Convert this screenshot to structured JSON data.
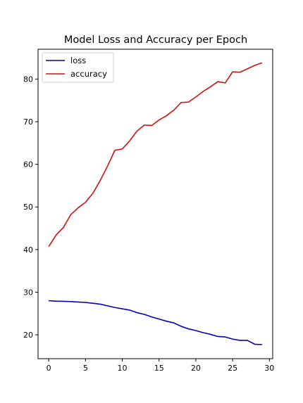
{
  "chart_data": {
    "type": "line",
    "title": "Model Loss and Accuracy per Epoch",
    "xlabel": "",
    "ylabel": "",
    "xlim": [
      -1.45,
      30.45
    ],
    "ylim": [
      14.4,
      87.0
    ],
    "xticks": [
      0,
      5,
      10,
      15,
      20,
      25,
      30
    ],
    "yticks": [
      20,
      30,
      40,
      50,
      60,
      70,
      80
    ],
    "grid": false,
    "legend_position": "top-left",
    "x": [
      0,
      1,
      2,
      3,
      4,
      5,
      6,
      7,
      8,
      9,
      10,
      11,
      12,
      13,
      14,
      15,
      16,
      17,
      18,
      19,
      20,
      21,
      22,
      23,
      24,
      25,
      26,
      27,
      28,
      29
    ],
    "series": [
      {
        "name": "loss",
        "color": "#0000bb",
        "values": [
          28.0,
          27.9,
          27.85,
          27.8,
          27.7,
          27.6,
          27.4,
          27.2,
          26.8,
          26.4,
          26.1,
          25.8,
          25.2,
          24.8,
          24.2,
          23.7,
          23.2,
          22.8,
          22.0,
          21.4,
          21.0,
          20.5,
          20.1,
          19.6,
          19.5,
          19.0,
          18.7,
          18.7,
          17.8,
          17.7
        ]
      },
      {
        "name": "accuracy",
        "color": "#cc1111",
        "values": [
          40.7,
          43.4,
          45.2,
          48.2,
          49.8,
          51.1,
          53.2,
          56.2,
          59.6,
          63.3,
          63.6,
          65.5,
          67.8,
          69.2,
          69.1,
          70.4,
          71.4,
          72.7,
          74.5,
          74.6,
          75.8,
          77.1,
          78.2,
          79.4,
          79.1,
          81.7,
          81.6,
          82.4,
          83.2,
          83.8
        ]
      }
    ]
  }
}
